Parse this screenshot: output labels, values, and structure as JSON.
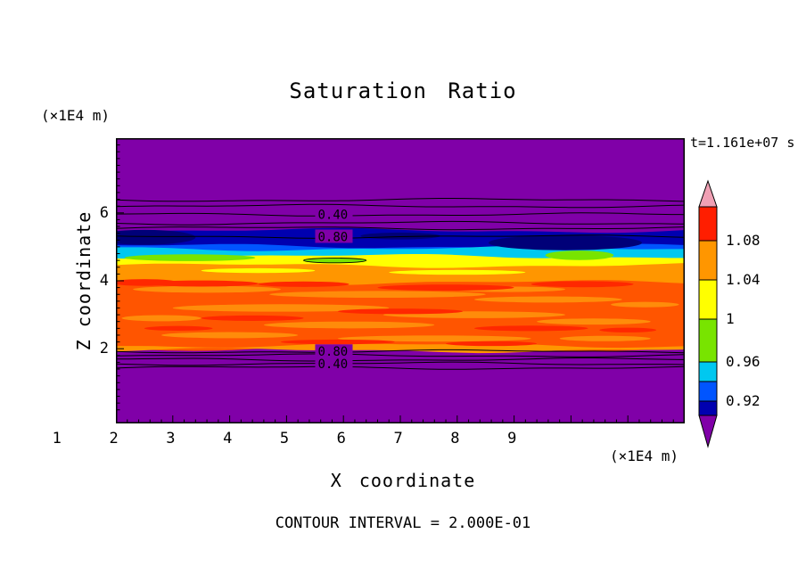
{
  "title": "Saturation Ratio",
  "time_label": "t=1.161e+07 s",
  "footer_label": "CONTOUR INTERVAL = 2.000E-01",
  "axes": {
    "x_label": "X coordinate",
    "x_unit": "(×1E4 m)",
    "y_label": "Z coordinate",
    "y_unit": "(×1E4 m)"
  },
  "colorbar": {
    "tip_top_color": "#f0a0b4",
    "tip_bottom_color": "#8000a8",
    "segments": [
      {
        "color": "#ff1e00",
        "from": 32,
        "to": 70
      },
      {
        "color": "#ff9600",
        "from": 70,
        "to": 114
      },
      {
        "color": "#ffff00",
        "from": 114,
        "to": 158
      },
      {
        "color": "#78e400",
        "from": 158,
        "to": 206
      },
      {
        "color": "#00c8f0",
        "from": 206,
        "to": 228
      },
      {
        "color": "#0055ff",
        "from": 228,
        "to": 250
      },
      {
        "color": "#0000b0",
        "from": 250,
        "to": 266
      }
    ],
    "tick_labels": [
      {
        "text": "1.08",
        "y": 70
      },
      {
        "text": "1.04",
        "y": 114
      },
      {
        "text": "1",
        "y": 158
      },
      {
        "text": "0.96",
        "y": 206
      },
      {
        "text": "0.92",
        "y": 250
      }
    ]
  },
  "chart_data": {
    "type": "contour",
    "title": "Saturation Ratio",
    "xlabel": "X coordinate",
    "ylabel": "Z coordinate",
    "x_unit": "(×1E4 m)",
    "z_unit": "(×1E4 m)",
    "time": "t=1.161e+07 s",
    "contour_interval": 0.2,
    "contour_interval_label": "CONTOUR INTERVAL = 2.000E-01",
    "xlim": [
      0,
      10
    ],
    "zlim": [
      -0.2,
      8.2
    ],
    "x_ticks": [
      1,
      2,
      3,
      4,
      5,
      6,
      7,
      8,
      9
    ],
    "z_ticks": [
      2,
      4,
      6
    ],
    "x_minor_step": 0.2,
    "z_minor_step": 0.2,
    "background_color": "#8000a8",
    "colorbar_values": [
      1.08,
      1.04,
      1,
      0.96,
      0.92
    ],
    "label_x": 3.55,
    "bands": [
      {
        "name": "navy",
        "z_top": 5.48,
        "z_bottom": 4.95,
        "color": "#0000b0"
      },
      {
        "name": "blue",
        "z_top": 5.02,
        "z_bottom": 4.88,
        "color": "#0055ff"
      },
      {
        "name": "cyan",
        "z_top": 4.95,
        "z_bottom": 4.62,
        "color": "#00c8f0"
      },
      {
        "name": "yellow",
        "z_top": 4.72,
        "z_bottom": 4.35,
        "color": "#ffff00"
      },
      {
        "name": "orange",
        "z_top": 4.45,
        "z_bottom": 3.85,
        "color": "#ff9600"
      },
      {
        "name": "red-orange",
        "z_top": 3.95,
        "z_bottom": 2.0,
        "color": "#ff5500"
      },
      {
        "name": "orange-bottom",
        "z_top": 2.1,
        "z_bottom": 1.95,
        "color": "#ff9600"
      }
    ],
    "blobs": [
      {
        "name": "navy-lump-left",
        "x": 0.5,
        "z": 5.28,
        "rx": 0.9,
        "rz": 0.22,
        "color": "#000078"
      },
      {
        "name": "navy-lump-mid",
        "x": 5.0,
        "z": 5.32,
        "rx": 0.7,
        "rz": 0.1,
        "color": "#000078"
      },
      {
        "name": "navy-lump-right",
        "x": 7.9,
        "z": 5.12,
        "rx": 1.35,
        "rz": 0.22,
        "color": "#000078"
      },
      {
        "name": "green-streak-left",
        "x": 1.3,
        "z": 4.68,
        "rx": 1.15,
        "rz": 0.1,
        "color": "#78e400"
      },
      {
        "name": "green-blob-right",
        "x": 8.15,
        "z": 4.75,
        "rx": 0.6,
        "rz": 0.14,
        "color": "#78e400"
      },
      {
        "name": "green-lens-outlined",
        "x": 3.85,
        "z": 4.6,
        "rx": 0.55,
        "rz": 0.07,
        "color": "#78e400",
        "outline": true
      },
      {
        "name": "yellow-streak",
        "x": 2.5,
        "z": 4.3,
        "rx": 1.0,
        "rz": 0.07,
        "color": "#ffff00"
      },
      {
        "name": "yellow-streak",
        "x": 6.0,
        "z": 4.25,
        "rx": 1.2,
        "rz": 0.07,
        "color": "#ffff00"
      },
      {
        "name": "orange-streak",
        "x": 1.6,
        "z": 3.75,
        "rx": 1.3,
        "rz": 0.1,
        "color": "#ff8c0a"
      },
      {
        "name": "orange-streak",
        "x": 4.6,
        "z": 3.6,
        "rx": 1.9,
        "rz": 0.1,
        "color": "#ff8c0a"
      },
      {
        "name": "orange-streak",
        "x": 7.6,
        "z": 3.45,
        "rx": 1.3,
        "rz": 0.09,
        "color": "#ff8c0a"
      },
      {
        "name": "orange-streak",
        "x": 2.9,
        "z": 3.2,
        "rx": 1.9,
        "rz": 0.11,
        "color": "#ff8c0a"
      },
      {
        "name": "orange-streak",
        "x": 6.3,
        "z": 3.0,
        "rx": 1.6,
        "rz": 0.1,
        "color": "#ff8c0a"
      },
      {
        "name": "orange-streak",
        "x": 0.8,
        "z": 2.9,
        "rx": 0.7,
        "rz": 0.09,
        "color": "#ff8c0a"
      },
      {
        "name": "orange-streak",
        "x": 4.1,
        "z": 2.7,
        "rx": 1.5,
        "rz": 0.1,
        "color": "#ff8c0a"
      },
      {
        "name": "orange-streak",
        "x": 8.4,
        "z": 2.8,
        "rx": 1.0,
        "rz": 0.09,
        "color": "#ff8c0a"
      },
      {
        "name": "orange-streak",
        "x": 2.0,
        "z": 2.4,
        "rx": 1.2,
        "rz": 0.09,
        "color": "#ff8c0a"
      },
      {
        "name": "orange-streak",
        "x": 5.6,
        "z": 2.3,
        "rx": 1.7,
        "rz": 0.09,
        "color": "#ff8c0a"
      },
      {
        "name": "orange-streak",
        "x": 8.6,
        "z": 2.3,
        "rx": 0.8,
        "rz": 0.08,
        "color": "#ff8c0a"
      },
      {
        "name": "orange-streak",
        "x": 6.9,
        "z": 3.75,
        "rx": 1.0,
        "rz": 0.08,
        "color": "#ff8c0a"
      },
      {
        "name": "orange-streak",
        "x": 9.3,
        "z": 3.3,
        "rx": 0.6,
        "rz": 0.08,
        "color": "#ff8c0a"
      },
      {
        "name": "red-streak",
        "x": 0.5,
        "z": 3.95,
        "rx": 0.6,
        "rz": 0.1,
        "color": "#ff2800"
      },
      {
        "name": "red-streak",
        "x": 1.5,
        "z": 3.92,
        "rx": 1.0,
        "rz": 0.09,
        "color": "#ff2800"
      },
      {
        "name": "red-streak",
        "x": 3.3,
        "z": 3.9,
        "rx": 0.8,
        "rz": 0.08,
        "color": "#ff2800"
      },
      {
        "name": "red-streak",
        "x": 5.8,
        "z": 3.8,
        "rx": 1.2,
        "rz": 0.09,
        "color": "#ff2800"
      },
      {
        "name": "red-streak",
        "x": 8.2,
        "z": 3.9,
        "rx": 0.9,
        "rz": 0.09,
        "color": "#ff2800"
      },
      {
        "name": "red-streak",
        "x": 2.4,
        "z": 2.9,
        "rx": 0.9,
        "rz": 0.08,
        "color": "#ff2800"
      },
      {
        "name": "red-streak",
        "x": 5.0,
        "z": 3.1,
        "rx": 1.1,
        "rz": 0.08,
        "color": "#ff2800"
      },
      {
        "name": "red-streak",
        "x": 7.3,
        "z": 2.6,
        "rx": 1.0,
        "rz": 0.08,
        "color": "#ff2800"
      },
      {
        "name": "red-streak",
        "x": 3.9,
        "z": 2.2,
        "rx": 1.0,
        "rz": 0.07,
        "color": "#ff2800"
      },
      {
        "name": "red-streak",
        "x": 6.6,
        "z": 2.15,
        "rx": 0.8,
        "rz": 0.07,
        "color": "#ff2800"
      },
      {
        "name": "red-streak",
        "x": 1.1,
        "z": 2.6,
        "rx": 0.6,
        "rz": 0.07,
        "color": "#ff2800"
      },
      {
        "name": "red-streak",
        "x": 9.0,
        "z": 2.55,
        "rx": 0.5,
        "rz": 0.07,
        "color": "#ff2800"
      }
    ],
    "contour_lines_upper": [
      {
        "z": 6.38
      },
      {
        "z": 6.2
      },
      {
        "z": 5.95,
        "label": "0.40"
      },
      {
        "z": 5.7
      },
      {
        "z": 5.55
      },
      {
        "z": 5.3,
        "label": "0.80"
      }
    ],
    "contour_lines_lower": [
      {
        "z": 1.92,
        "label": "0.80"
      },
      {
        "z": 1.8
      },
      {
        "z": 1.68
      },
      {
        "z": 1.56,
        "label": "0.40"
      },
      {
        "z": 1.44
      }
    ]
  }
}
